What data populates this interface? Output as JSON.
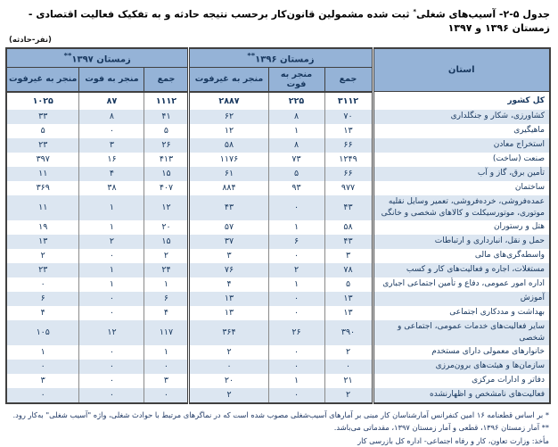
{
  "title": {
    "pre": "جدول ۵-۲- آسیب‌های شغلی",
    "marker": "*",
    "post": " ثبت شده مشمولین قانون‌کار برحسب نتیجه حادثه و به تفکیک فعالیت اقتصادی - زمستان ۱۳۹۶ و ۱۳۹۷"
  },
  "unit_note": "(نفر-حادثه)",
  "table": {
    "stub_header": "استان",
    "col_groups": [
      {
        "label": "زمستان ۱۳۹۶",
        "marker": "**",
        "columns": [
          "جمع",
          "منجر به فوت",
          "منجر به غیرفوت"
        ]
      },
      {
        "label": "زمستان ۱۳۹۷",
        "marker": "**",
        "columns": [
          "جمع",
          "منجر به فوت",
          "منجر به غیرفوت"
        ]
      }
    ],
    "rows": [
      {
        "label": "کل کشور",
        "values": [
          "۳۱۱۲",
          "۲۲۵",
          "۲۸۸۷",
          "۱۱۱۲",
          "۸۷",
          "۱۰۲۵"
        ]
      },
      {
        "label": "کشاورزی، شکار و جنگلداری",
        "values": [
          "۷۰",
          "۸",
          "۶۲",
          "۴۱",
          "۸",
          "۳۳"
        ]
      },
      {
        "label": "ماهیگیری",
        "values": [
          "۱۳",
          "۱",
          "۱۲",
          "۵",
          "۰",
          "۵"
        ]
      },
      {
        "label": "استخراج معادن",
        "values": [
          "۶۶",
          "۸",
          "۵۸",
          "۲۶",
          "۳",
          "۲۳"
        ]
      },
      {
        "label": "صنعت (ساخت)",
        "values": [
          "۱۲۴۹",
          "۷۳",
          "۱۱۷۶",
          "۴۱۳",
          "۱۶",
          "۳۹۷"
        ]
      },
      {
        "label": "تأمین برق، گاز و آب",
        "values": [
          "۶۶",
          "۵",
          "۶۱",
          "۱۵",
          "۴",
          "۱۱"
        ]
      },
      {
        "label": "ساختمان",
        "values": [
          "۹۷۷",
          "۹۳",
          "۸۸۴",
          "۴۰۷",
          "۳۸",
          "۳۶۹"
        ]
      },
      {
        "label": "عمده‌فروشی، خرده‌فروشی، تعمیر وسایل نقلیه\nموتوری، موتورسیکلت و کالاهای شخصی و خانگی",
        "values": [
          "۴۳",
          "۰",
          "۴۳",
          "۱۲",
          "۱",
          "۱۱"
        ]
      },
      {
        "label": "هتل و رستوران",
        "values": [
          "۵۸",
          "۱",
          "۵۷",
          "۲۰",
          "۱",
          "۱۹"
        ]
      },
      {
        "label": "حمل و نقل، انبارداری و ارتباطات",
        "values": [
          "۴۳",
          "۶",
          "۳۷",
          "۱۵",
          "۲",
          "۱۳"
        ]
      },
      {
        "label": "واسطه‌گری‌های مالی",
        "values": [
          "۳",
          "۰",
          "۳",
          "۲",
          "۰",
          "۲"
        ]
      },
      {
        "label": "مستغلات، اجاره و فعالیت‌های کار و کسب",
        "values": [
          "۷۸",
          "۲",
          "۷۶",
          "۲۴",
          "۱",
          "۲۳"
        ]
      },
      {
        "label": "اداره امور عمومی، دفاع و تأمین اجتماعی اجباری",
        "values": [
          "۵",
          "۱",
          "۴",
          "۱",
          "۱",
          "۰"
        ]
      },
      {
        "label": "آموزش",
        "values": [
          "۱۳",
          "۰",
          "۱۳",
          "۶",
          "۰",
          "۶"
        ]
      },
      {
        "label": "بهداشت و مددکاری اجتماعی",
        "values": [
          "۱۳",
          "۰",
          "۱۳",
          "۴",
          "۰",
          "۴"
        ]
      },
      {
        "label": "سایر فعالیت‌های خدمات عمومی، اجتماعی و\nشخصی",
        "values": [
          "۳۹۰",
          "۲۶",
          "۳۶۴",
          "۱۱۷",
          "۱۲",
          "۱۰۵"
        ]
      },
      {
        "label": "خانوارهای معمولی دارای مستخدم",
        "values": [
          "۲",
          "۰",
          "۲",
          "۱",
          "۰",
          "۱"
        ]
      },
      {
        "label": "سازمان‌ها و هیئت‌های برون‌مرزی",
        "values": [
          "۰",
          "۰",
          "۰",
          "۰",
          "۰",
          "۰"
        ]
      },
      {
        "label": "دفاتر و ادارات مرکزی",
        "values": [
          "۲۱",
          "۱",
          "۲۰",
          "۳",
          "۰",
          "۳"
        ]
      },
      {
        "label": "فعالیت‌های نامشخص و اظهارنشده",
        "values": [
          "۲",
          "۰",
          "۲",
          "۰",
          "۰",
          "۰"
        ]
      }
    ]
  },
  "footnotes": [
    "* بر اساس قطعنامه ۱۶ امین کنفرانس آمارشناسان کار مبنی بر آمارهای آسیب‌شغلی مصوب شده است که در نماگرهای مرتبط با حوادث شغلی، واژه \"آسیب شغلی\" به‌کار رود.",
    "** آمار زمستان ۱۳۹۶، قطعی و آمار زمستان ۱۳۹۷، مقدماتی می‌باشد."
  ],
  "source": "مأخذ: وزارت تعاون، کار و رفاه اجتماعی- اداره کل بازرسی کار",
  "colors": {
    "header_bg": "#95B3D7",
    "stripe_bg": "#DCE6F1",
    "text": "#17375E",
    "border": "#404040"
  }
}
